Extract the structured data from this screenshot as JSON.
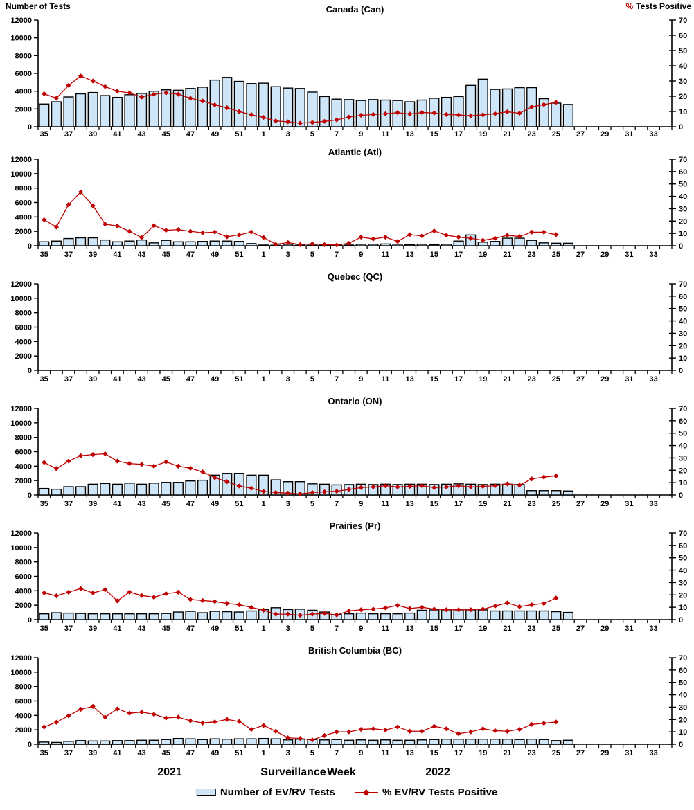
{
  "title_area": {
    "left_axis_title": "Number of Tests",
    "right_axis_pct": "%",
    "right_axis_title": "Tests Positive"
  },
  "x_axis": {
    "weeks": [
      35,
      36,
      37,
      38,
      39,
      40,
      41,
      42,
      43,
      44,
      45,
      46,
      47,
      48,
      49,
      50,
      51,
      52,
      1,
      2,
      3,
      4,
      5,
      6,
      7,
      8,
      9,
      10,
      11,
      12,
      13,
      14,
      15,
      16,
      17,
      18,
      19,
      20,
      21,
      22,
      23,
      24,
      25,
      26,
      27,
      28,
      29,
      30,
      31,
      32,
      33,
      34
    ],
    "label_every_other_week": true,
    "axis_title": "Surveillance Week",
    "year_left": "2021",
    "year_right": "2022"
  },
  "y_axis_left": {
    "title": "Number of Tests",
    "ticks": [
      0,
      2000,
      4000,
      6000,
      8000,
      10000,
      12000
    ],
    "max": 12000
  },
  "y_axis_right": {
    "title": "% Tests Positive",
    "ticks": [
      0,
      10,
      20,
      30,
      40,
      50,
      60,
      70
    ],
    "max": 70
  },
  "legend": {
    "bar_label": "Number of EV/RV Tests",
    "line_label": "% EV/RV Tests Positive"
  },
  "colors": {
    "bar_fill": "#CEE6F7",
    "bar_stroke": "#000000",
    "line": "#C00000",
    "marker": "#C00000",
    "axis": "#000000"
  },
  "chart_data": [
    {
      "type": "bar+line",
      "title": "Canada (Can)",
      "x_weeks_start": 35,
      "series": [
        {
          "name": "Number of EV/RV Tests",
          "axis": "left",
          "values": [
            2550,
            2800,
            3350,
            3700,
            3850,
            3500,
            3300,
            3600,
            3750,
            4000,
            4150,
            4100,
            4300,
            4450,
            5250,
            5550,
            5100,
            4850,
            4900,
            4500,
            4350,
            4300,
            3900,
            3400,
            3100,
            3050,
            2950,
            3050,
            3000,
            2950,
            2800,
            3000,
            3200,
            3300,
            3400,
            4650,
            5350,
            4200,
            4250,
            4400,
            4400,
            3150,
            2650,
            2500
          ]
        },
        {
          "name": "% EV/RV Tests Positive",
          "axis": "right",
          "values": [
            21.6,
            18.7,
            27.1,
            33.3,
            30,
            26.3,
            23.3,
            22.2,
            19.5,
            21.3,
            22.2,
            21.3,
            18.7,
            16.9,
            14.3,
            12.5,
            9.9,
            7.9,
            6.1,
            3.8,
            3.2,
            2.3,
            2.8,
            3.5,
            4.5,
            6.3,
            7.5,
            8,
            8.5,
            9.2,
            8.3,
            9.3,
            9,
            8,
            7.7,
            7.2,
            7.8,
            8.5,
            9.8,
            8.8,
            13,
            14.5,
            16
          ]
        }
      ]
    },
    {
      "type": "bar+line",
      "title": "Atlantic (Atl)",
      "x_weeks_start": 35,
      "series": [
        {
          "name": "Number of EV/RV Tests",
          "axis": "left",
          "values": [
            550,
            650,
            1000,
            1100,
            1100,
            800,
            550,
            650,
            800,
            400,
            750,
            550,
            550,
            600,
            650,
            650,
            600,
            300,
            100,
            80,
            200,
            80,
            80,
            80,
            80,
            100,
            200,
            200,
            250,
            200,
            150,
            200,
            150,
            200,
            650,
            1500,
            500,
            600,
            1050,
            1050,
            750,
            400,
            350,
            350
          ]
        },
        {
          "name": "% EV/RV Tests Positive",
          "axis": "right",
          "values": [
            21,
            15.2,
            33.3,
            43.5,
            32.4,
            17.5,
            16,
            11.7,
            6.7,
            16.3,
            12.5,
            13.1,
            11.7,
            10.5,
            11.1,
            7.3,
            8.8,
            11.1,
            6.7,
            1.2,
            2.6,
            0.9,
            1.5,
            0.9,
            0.6,
            2,
            7,
            5.5,
            7,
            3.5,
            9,
            8,
            12,
            8.5,
            7,
            6,
            4.5,
            6,
            8.5,
            7.5,
            11,
            11,
            9
          ]
        }
      ]
    },
    {
      "type": "bar+line",
      "title": "Quebec (QC)",
      "x_weeks_start": 35,
      "series": [
        {
          "name": "Number of EV/RV Tests",
          "axis": "left",
          "values": []
        },
        {
          "name": "% EV/RV Tests Positive",
          "axis": "right",
          "values": []
        }
      ]
    },
    {
      "type": "bar+line",
      "title": "Ontario (ON)",
      "x_weeks_start": 35,
      "series": [
        {
          "name": "Number of EV/RV Tests",
          "axis": "left",
          "values": [
            900,
            800,
            1150,
            1150,
            1500,
            1600,
            1500,
            1650,
            1500,
            1650,
            1750,
            1750,
            1950,
            2050,
            2750,
            3000,
            3000,
            2750,
            2750,
            2100,
            1850,
            1850,
            1550,
            1500,
            1400,
            1450,
            1500,
            1450,
            1500,
            1450,
            1500,
            1500,
            1450,
            1500,
            1550,
            1500,
            1450,
            1500,
            1500,
            1450,
            600,
            600,
            600,
            550
          ]
        },
        {
          "name": "% EV/RV Tests Positive",
          "axis": "right",
          "values": [
            26.3,
            21.3,
            27.4,
            31.8,
            32.7,
            33.3,
            27.4,
            25.4,
            24.8,
            23.3,
            26.8,
            23.3,
            21.6,
            18.7,
            14,
            10.8,
            7.3,
            5.5,
            2.9,
            2,
            1.5,
            0.9,
            2,
            2.6,
            3,
            4.5,
            6,
            6.5,
            7.5,
            6.5,
            7,
            7.5,
            6,
            6.5,
            7.5,
            6.5,
            7,
            7.5,
            9,
            8,
            13,
            14.5,
            15.5
          ]
        }
      ]
    },
    {
      "type": "bar+line",
      "title": "Prairies (Pr)",
      "x_weeks_start": 35,
      "series": [
        {
          "name": "Number of EV/RV Tests",
          "axis": "left",
          "values": [
            800,
            950,
            900,
            850,
            800,
            800,
            800,
            800,
            800,
            800,
            850,
            1050,
            1150,
            950,
            1150,
            1100,
            1050,
            1200,
            1400,
            1650,
            1400,
            1450,
            1300,
            1050,
            700,
            800,
            900,
            800,
            800,
            800,
            900,
            1300,
            1350,
            1350,
            1350,
            1350,
            1350,
            1200,
            1200,
            1200,
            1200,
            1200,
            1100,
            1000
          ]
        },
        {
          "name": "% EV/RV Tests Positive",
          "axis": "right",
          "values": [
            21.6,
            19.3,
            22.2,
            25.1,
            21.6,
            24.2,
            15.2,
            22.2,
            19.5,
            18.1,
            21,
            22.2,
            16.3,
            15.5,
            14.6,
            13.1,
            12,
            9.9,
            7.6,
            4.4,
            4.4,
            3.5,
            4.4,
            5,
            3.8,
            7,
            8,
            8.5,
            9.5,
            11.5,
            9,
            10,
            8.5,
            8,
            8,
            8,
            8.5,
            11,
            13.5,
            10.5,
            12,
            13,
            17.5
          ]
        }
      ]
    },
    {
      "type": "bar+line",
      "title": "British Columbia (BC)",
      "x_weeks_start": 35,
      "series": [
        {
          "name": "Number of EV/RV Tests",
          "axis": "left",
          "values": [
            300,
            250,
            400,
            500,
            450,
            450,
            500,
            500,
            550,
            550,
            650,
            800,
            750,
            650,
            750,
            700,
            750,
            750,
            800,
            750,
            600,
            700,
            650,
            600,
            650,
            550,
            600,
            550,
            600,
            550,
            550,
            600,
            650,
            700,
            700,
            700,
            700,
            700,
            700,
            650,
            700,
            650,
            500,
            550
          ]
        },
        {
          "name": "% EV/RV Tests Positive",
          "axis": "right",
          "values": [
            14,
            17.8,
            23,
            28.3,
            30.6,
            21.9,
            28.6,
            25.1,
            26,
            24.2,
            21.3,
            21.9,
            19,
            17.2,
            18.1,
            20.1,
            18.4,
            12,
            15.2,
            10.5,
            5.2,
            4.7,
            3.5,
            7,
            10,
            10,
            12,
            12.5,
            11.5,
            14,
            10.5,
            10.5,
            14.5,
            12.5,
            8.5,
            10,
            12.5,
            11,
            10.5,
            12,
            16,
            17,
            18
          ]
        }
      ]
    }
  ]
}
